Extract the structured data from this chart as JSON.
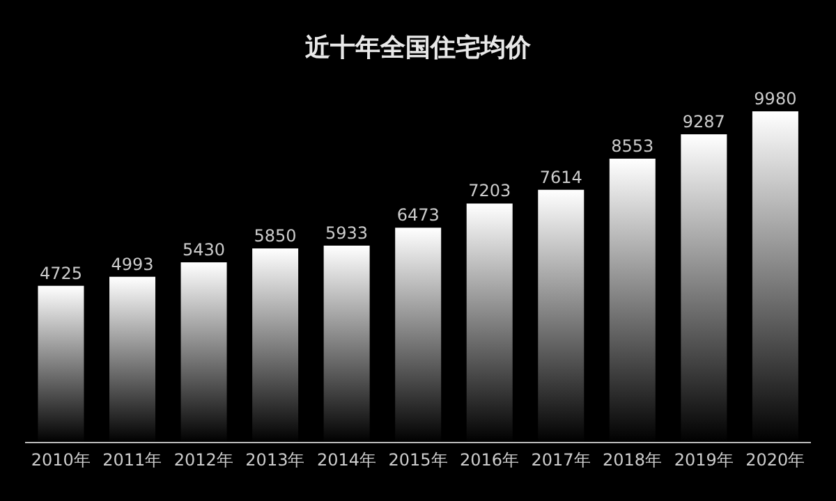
{
  "chart_data": {
    "type": "bar",
    "title": "近十年全国住宅均价",
    "categories": [
      "2010年",
      "2011年",
      "2012年",
      "2013年",
      "2014年",
      "2015年",
      "2016年",
      "2017年",
      "2018年",
      "2019年",
      "2020年"
    ],
    "values": [
      4725,
      4993,
      5430,
      5850,
      5933,
      6473,
      7203,
      7614,
      8553,
      9287,
      9980
    ],
    "color": "#ffffff",
    "data_labels": true,
    "grid": false,
    "legend": false
  }
}
